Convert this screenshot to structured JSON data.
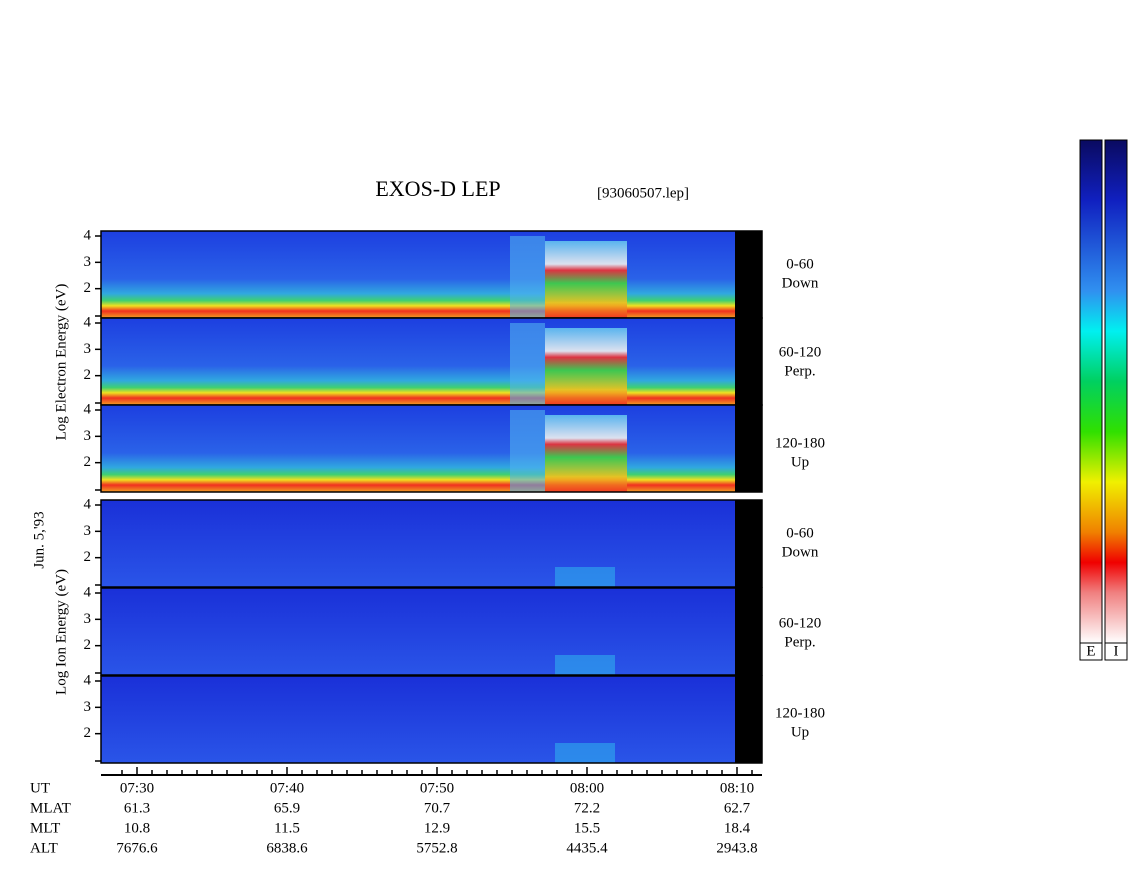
{
  "title": "EXOS-D LEP",
  "file": "[93060507.lep]",
  "date_label": "Jun. 5,'93",
  "electron": {
    "axis_label": "Log Electron Energy (eV)",
    "yticks": [
      2,
      3,
      4
    ],
    "panels": [
      {
        "range": "0-60",
        "direction": "Down"
      },
      {
        "range": "60-120",
        "direction": "Perp."
      },
      {
        "range": "120-180",
        "direction": "Up"
      }
    ]
  },
  "ion": {
    "axis_label": "Log Ion Energy (eV)",
    "yticks": [
      2,
      3,
      4
    ],
    "panels": [
      {
        "range": "0-60",
        "direction": "Down"
      },
      {
        "range": "60-120",
        "direction": "Perp."
      },
      {
        "range": "120-180",
        "direction": "Up"
      }
    ]
  },
  "time_axis": {
    "rows": [
      {
        "label": "UT",
        "values": [
          "07:30",
          "07:40",
          "07:50",
          "08:00",
          "08:10"
        ]
      },
      {
        "label": "MLAT",
        "values": [
          "61.3",
          "65.9",
          "70.7",
          "72.2",
          "62.7"
        ]
      },
      {
        "label": "MLT",
        "values": [
          "10.8",
          "11.5",
          "12.9",
          "15.5",
          "18.4"
        ]
      },
      {
        "label": "ALT",
        "values": [
          "7676.6",
          "6838.6",
          "5752.8",
          "4435.4",
          "2943.8"
        ]
      }
    ]
  },
  "colorbar": {
    "labels": [
      "E",
      "I"
    ]
  }
}
